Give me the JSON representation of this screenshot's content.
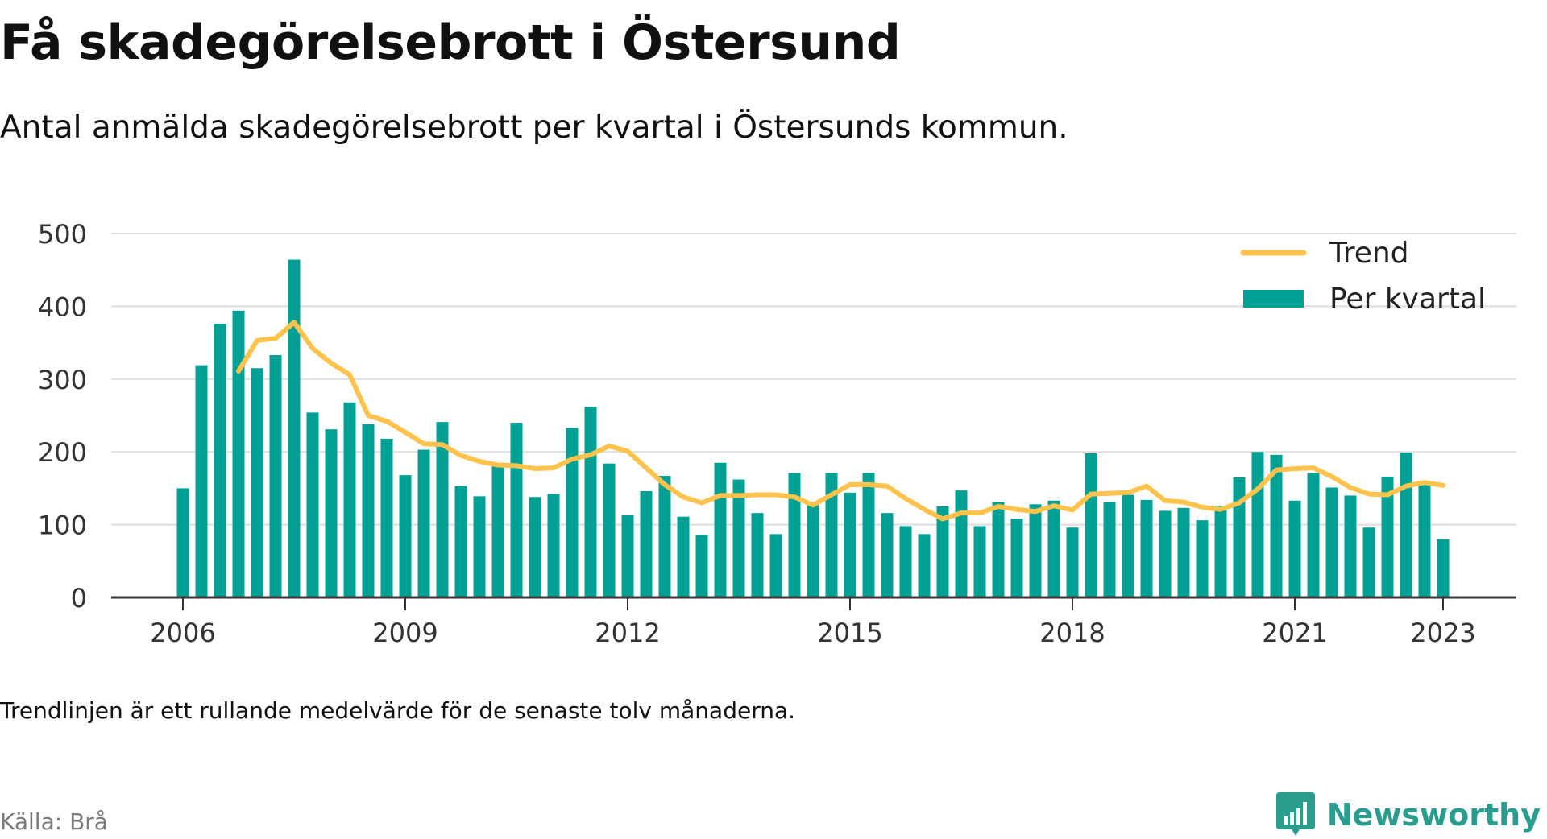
{
  "title": "Få skadegörelsebrott i Östersund",
  "subtitle": "Antal anmälda skadegörelsebrott per kvartal i Östersunds kommun.",
  "note": "Trendlinjen är ett rullande medelvärde för de senaste tolv månaderna.",
  "source": "Källa: Brå",
  "brand": {
    "name": "Newsworthy",
    "icon": "bar-chart-bubble-icon"
  },
  "colors": {
    "bars": "#00a095",
    "trend": "#ffc34d",
    "grid": "#dddddd",
    "axis": "#333333",
    "brand": "#2a9d8f"
  },
  "chart_data": {
    "type": "bar",
    "x_start": "2006 Q1",
    "x_tick_labels": [
      "2006",
      "2009",
      "2012",
      "2015",
      "2018",
      "2021",
      "2023"
    ],
    "y_ticks": [
      0,
      100,
      200,
      300,
      400,
      500
    ],
    "ylim": [
      0,
      500
    ],
    "grid": true,
    "legend_position": "top-right",
    "series": [
      {
        "name": "Per kvartal",
        "type": "bar",
        "values": [
          150,
          319,
          376,
          394,
          315,
          333,
          464,
          254,
          231,
          268,
          238,
          218,
          168,
          203,
          241,
          153,
          139,
          180,
          240,
          138,
          142,
          233,
          262,
          184,
          113,
          146,
          167,
          111,
          86,
          185,
          162,
          116,
          87,
          171,
          131,
          171,
          144,
          171,
          116,
          98,
          87,
          125,
          147,
          98,
          131,
          108,
          128,
          133,
          96,
          198,
          131,
          141,
          134,
          119,
          123,
          106,
          126,
          165,
          200,
          196,
          133,
          171,
          151,
          140,
          96,
          166,
          199,
          157,
          80
        ]
      },
      {
        "name": "Trend",
        "type": "line",
        "start_index": 3,
        "values": [
          311,
          353,
          356,
          378,
          342,
          322,
          306,
          250,
          242,
          227,
          211,
          210,
          195,
          187,
          182,
          181,
          177,
          178,
          190,
          196,
          208,
          201,
          178,
          155,
          138,
          130,
          140,
          140,
          141,
          141,
          138,
          127,
          141,
          155,
          155,
          153,
          136,
          121,
          108,
          116,
          116,
          125,
          121,
          118,
          126,
          120,
          142,
          143,
          144,
          153,
          133,
          131,
          124,
          121,
          130,
          149,
          175,
          177,
          178,
          166,
          151,
          142,
          141,
          153,
          158,
          154
        ]
      }
    ]
  }
}
